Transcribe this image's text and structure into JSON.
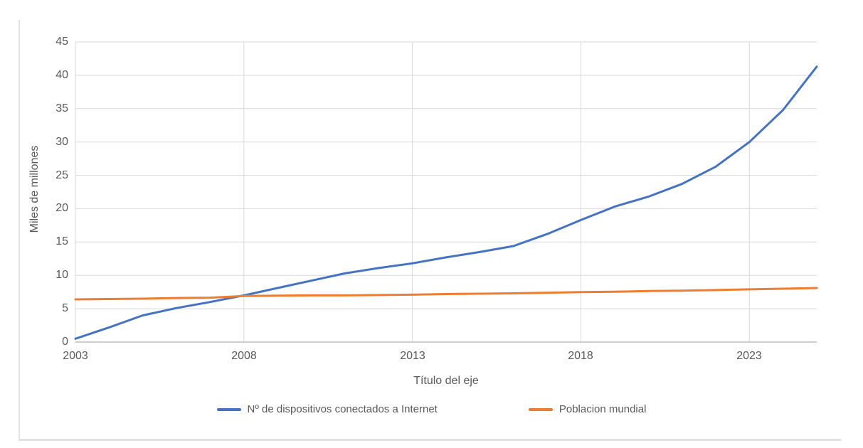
{
  "chart_data": {
    "type": "line",
    "title": "",
    "xlabel": "Título del eje",
    "ylabel": "Miles de millones",
    "xlim": [
      2003,
      2025
    ],
    "ylim": [
      0,
      45
    ],
    "x_ticks": [
      2003,
      2008,
      2013,
      2018,
      2023
    ],
    "y_ticks": [
      0,
      5,
      10,
      15,
      20,
      25,
      30,
      35,
      40,
      45
    ],
    "grid": true,
    "legend_position": "bottom",
    "x": [
      2003,
      2004,
      2005,
      2006,
      2007,
      2008,
      2009,
      2010,
      2011,
      2012,
      2013,
      2014,
      2015,
      2016,
      2017,
      2018,
      2019,
      2020,
      2021,
      2022,
      2023,
      2024,
      2025
    ],
    "series": [
      {
        "name": "Nº de dispositivos conectados a Internet",
        "color": "#4472c4",
        "values": [
          0.5,
          2.2,
          4.0,
          5.1,
          6.0,
          7.0,
          8.1,
          9.2,
          10.3,
          11.1,
          11.8,
          12.7,
          13.5,
          14.4,
          16.2,
          18.3,
          20.3,
          21.8,
          23.7,
          26.3,
          30.0,
          34.8,
          41.3
        ]
      },
      {
        "name": "Poblacion mundial",
        "color": "#ed7d31",
        "values": [
          6.4,
          6.45,
          6.5,
          6.6,
          6.65,
          6.9,
          6.95,
          7.0,
          7.0,
          7.05,
          7.1,
          7.2,
          7.25,
          7.3,
          7.4,
          7.5,
          7.55,
          7.65,
          7.7,
          7.8,
          7.9,
          8.0,
          8.1
        ]
      }
    ]
  },
  "colors": {
    "gridline": "#d9d9d9",
    "axis": "#bfbfbf",
    "text": "#595959",
    "frame": "#e3e3e3",
    "background": "#ffffff"
  }
}
